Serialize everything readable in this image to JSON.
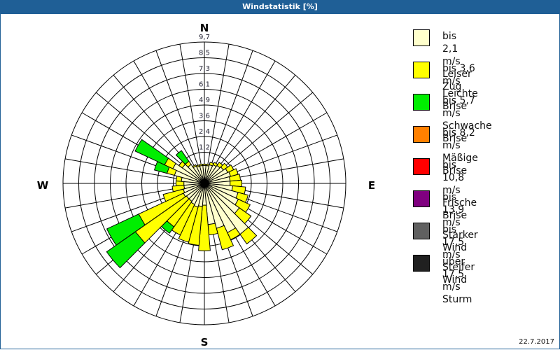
{
  "window": {
    "title": "Windstatistik [%]"
  },
  "footer": {
    "date": "22.7.2017"
  },
  "compass": {
    "n": "N",
    "e": "E",
    "s": "S",
    "w": "W"
  },
  "legend": [
    {
      "line1": "bis 2,1 m/s",
      "line2": "Leiser Zug",
      "color": "#ffffcc"
    },
    {
      "line1": "bis 3,6 m/s",
      "line2": "Leichte Brise",
      "color": "#ffff00"
    },
    {
      "line1": "bis 5,7 m/s",
      "line2": "Schwache Brise",
      "color": "#00ee00"
    },
    {
      "line1": "bis 8,2 m/s",
      "line2": "Mäßige Brise",
      "color": "#ff8000"
    },
    {
      "line1": "bis 10,8 m/s",
      "line2": "Frische Brise",
      "color": "#ff0000"
    },
    {
      "line1": "bis 13,9 m/s",
      "line2": "Starker Wind",
      "color": "#800080"
    },
    {
      "line1": "bis 17,5 m/s",
      "line2": "Steifer Wind",
      "color": "#606060"
    },
    {
      "line1": "über 17,5 m/s",
      "line2": "Sturm",
      "color": "#202020"
    }
  ],
  "chart_data": {
    "type": "wind-rose",
    "title": "Windstatistik [%]",
    "radial_ticks": [
      "0",
      "1,2",
      "2,4",
      "3,6",
      "4,9",
      "6,1",
      "7,3",
      "8,5",
      "9,7"
    ],
    "radial_max": 9.7,
    "directions_deg": [
      0,
      10,
      20,
      30,
      40,
      50,
      60,
      70,
      80,
      90,
      100,
      110,
      120,
      130,
      140,
      150,
      160,
      170,
      180,
      190,
      200,
      210,
      220,
      230,
      240,
      250,
      260,
      270,
      280,
      290,
      300,
      310,
      320,
      330,
      340,
      350
    ],
    "series": [
      {
        "name": "bis 2,1 m/s",
        "values": [
          0.2,
          0.2,
          0.3,
          0.4,
          0.5,
          0.6,
          0.8,
          0.9,
          0.8,
          0.8,
          1.0,
          1.5,
          1.7,
          2.1,
          3.6,
          3.0,
          2.4,
          2.0,
          0.5,
          0.6,
          0.7,
          0.6,
          0.5,
          0.5,
          0.6,
          0.5,
          0.4,
          0.4,
          0.6,
          1.2,
          1.5,
          0.9,
          0.6,
          0.3,
          0.2,
          0.2
        ]
      },
      {
        "name": "bis 3,6 m/s",
        "values": [
          0.1,
          0.1,
          0.2,
          0.2,
          0.3,
          0.4,
          0.5,
          0.6,
          0.8,
          0.9,
          1.0,
          0.8,
          1.0,
          1.1,
          0.9,
          0.6,
          1.7,
          0.8,
          3.5,
          3.0,
          2.8,
          2.6,
          2.4,
          4.8,
          3.8,
          1.6,
          0.9,
          0.6,
          0.4,
          0.6,
          0.7,
          0.3,
          0.3,
          0.1,
          0.1,
          0.1
        ]
      },
      {
        "name": "bis 5,7 m/s",
        "values": [
          0,
          0,
          0,
          0,
          0,
          0,
          0,
          0,
          0,
          0,
          0,
          0,
          0,
          0,
          0,
          0,
          0,
          0,
          0,
          0,
          0,
          0,
          0.6,
          2.7,
          2.7,
          0,
          0,
          0,
          0,
          1.0,
          2.5,
          0,
          1.0,
          0,
          0,
          0
        ]
      }
    ]
  }
}
